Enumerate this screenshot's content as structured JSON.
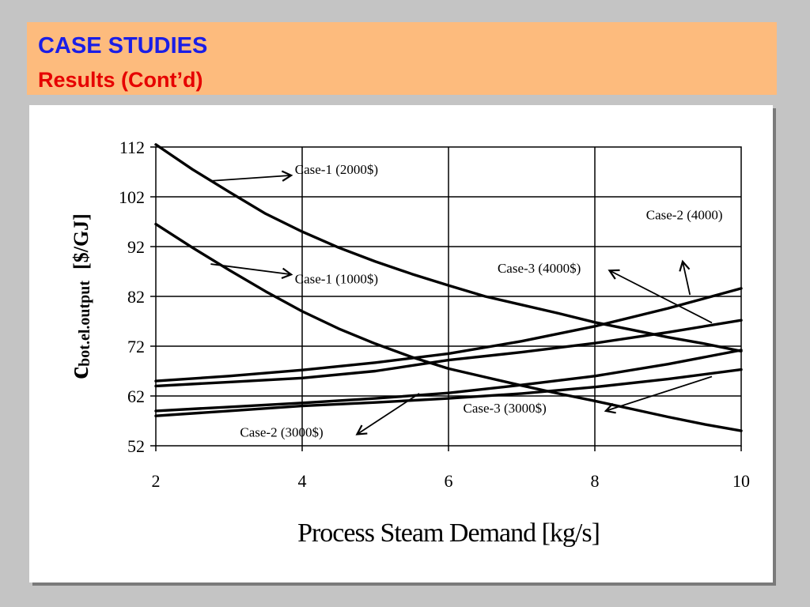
{
  "slide": {
    "title": "CASE STUDIES",
    "subtitle": "Results (Cont’d)"
  },
  "chart_data": {
    "type": "line",
    "xlabel": "Process Steam Demand [kg/s]",
    "ylabel_main": "c",
    "ylabel_sub": "bot.el.output",
    "ylabel_unit": "[$/GJ]",
    "xlim": [
      2,
      10
    ],
    "ylim": [
      52,
      112
    ],
    "xticks": [
      2,
      4,
      6,
      8,
      10
    ],
    "yticks": [
      52,
      62,
      72,
      82,
      92,
      102,
      112
    ],
    "grid": true,
    "line_color": "#000000",
    "series": [
      {
        "x": [
          2,
          2.5,
          3,
          3.5,
          4,
          4.5,
          5,
          5.5,
          6,
          6.5,
          7,
          7.5,
          8,
          8.5,
          9,
          9.5,
          10
        ],
        "values": [
          112.5,
          107.5,
          103,
          98.6,
          95,
          91.8,
          89,
          86.5,
          84.2,
          82,
          80.3,
          78.6,
          76.8,
          75.3,
          73.8,
          72.5,
          71
        ]
      },
      {
        "x": [
          2,
          2.5,
          3,
          3.5,
          4,
          4.5,
          5,
          5.5,
          6,
          6.5,
          7,
          7.5,
          8,
          8.5,
          9,
          9.5,
          10
        ],
        "values": [
          96.5,
          91.8,
          87.3,
          83,
          79,
          75.5,
          72.5,
          69.8,
          67.5,
          65.8,
          64.1,
          62.5,
          61,
          59.4,
          57.8,
          56.3,
          55
        ]
      },
      {
        "x": [
          2,
          3,
          4,
          5,
          6,
          7,
          8,
          9,
          10
        ],
        "values": [
          65,
          66,
          67.2,
          68.7,
          70.5,
          73,
          76,
          79.6,
          83.6
        ]
      },
      {
        "x": [
          2,
          3,
          4,
          5,
          6,
          7,
          8,
          9,
          10
        ],
        "values": [
          64,
          64.8,
          65.6,
          67,
          69.2,
          70.8,
          72.6,
          74.8,
          77.2
        ]
      },
      {
        "x": [
          2,
          3,
          4,
          5,
          6,
          7,
          8,
          9,
          10
        ],
        "values": [
          59,
          59.8,
          60.6,
          61.5,
          62.6,
          64.2,
          66,
          68.4,
          71.2
        ]
      },
      {
        "x": [
          2,
          3,
          4,
          5,
          6,
          7,
          8,
          9,
          10
        ],
        "values": [
          58,
          59,
          60,
          60.7,
          61.5,
          62.5,
          63.8,
          65.4,
          67.3
        ]
      }
    ],
    "annotations": [
      {
        "text": "Case-1 (2000$)",
        "x": 3.9,
        "y": 106.6,
        "from": [
          2.75,
          105.2
        ],
        "to": [
          3.85,
          106.3
        ]
      },
      {
        "text": "Case-1 (1000$)",
        "x": 3.9,
        "y": 84.6,
        "from": [
          2.75,
          88.5
        ],
        "to": [
          3.85,
          86.4
        ]
      },
      {
        "text": "Case-2 (4000)",
        "x": 8.7,
        "y": 97.5,
        "from": [
          9.3,
          82.3
        ],
        "to": [
          9.2,
          89
        ]
      },
      {
        "text": "Case-3 (4000$)",
        "x": 6.67,
        "y": 86.8,
        "from": [
          9.6,
          76.7
        ],
        "to": [
          8.2,
          87.2
        ]
      },
      {
        "text": "Case-3 (3000$)",
        "x": 6.2,
        "y": 58.7,
        "from": [
          9.6,
          65.9
        ],
        "to": [
          8.15,
          59
        ]
      },
      {
        "text": "Case-2 (3000$)",
        "x": 3.15,
        "y": 53.8,
        "from": [
          5.6,
          62.5
        ],
        "to": [
          4.75,
          54.3
        ]
      }
    ]
  }
}
